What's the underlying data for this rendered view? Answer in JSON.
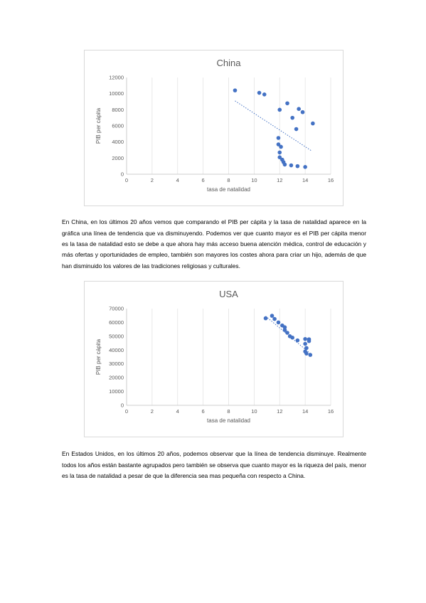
{
  "chart_data": [
    {
      "type": "scatter",
      "title": "China",
      "xlabel": "tasa de natalidad",
      "ylabel": "PIB per cápita",
      "xlim": [
        0,
        16
      ],
      "ylim": [
        0,
        12000
      ],
      "xticks": [
        0,
        2,
        4,
        6,
        8,
        10,
        12,
        14,
        16
      ],
      "yticks": [
        0,
        2000,
        4000,
        6000,
        8000,
        10000,
        12000
      ],
      "grid": "vertical",
      "trendline": {
        "style": "dotted",
        "x1": 8.5,
        "y1": 9100,
        "x2": 14.5,
        "y2": 2900
      },
      "color": "#4472c4",
      "points": [
        [
          8.5,
          10400
        ],
        [
          10.4,
          10100
        ],
        [
          10.8,
          9900
        ],
        [
          12.6,
          8800
        ],
        [
          12.0,
          8000
        ],
        [
          13.5,
          8100
        ],
        [
          13.8,
          7700
        ],
        [
          13.0,
          7000
        ],
        [
          14.6,
          6300
        ],
        [
          13.3,
          5600
        ],
        [
          11.9,
          4500
        ],
        [
          11.9,
          3700
        ],
        [
          12.1,
          3400
        ],
        [
          12.0,
          2700
        ],
        [
          12.0,
          2100
        ],
        [
          12.2,
          1800
        ],
        [
          12.3,
          1500
        ],
        [
          12.4,
          1200
        ],
        [
          12.9,
          1100
        ],
        [
          13.4,
          1000
        ],
        [
          14.0,
          900
        ]
      ]
    },
    {
      "type": "scatter",
      "title": "USA",
      "xlabel": "tasa de natalidad",
      "ylabel": "PIB per cápita",
      "xlim": [
        0,
        16
      ],
      "ylim": [
        0,
        70000
      ],
      "xticks": [
        0,
        2,
        4,
        6,
        8,
        10,
        12,
        14,
        16
      ],
      "yticks": [
        0,
        10000,
        20000,
        30000,
        40000,
        50000,
        60000,
        70000
      ],
      "grid": "vertical",
      "trendline": {
        "style": "dotted",
        "x1": 10.9,
        "y1": 64500,
        "x2": 14.4,
        "y2": 37500
      },
      "color": "#4472c4",
      "points": [
        [
          10.9,
          63000
        ],
        [
          11.4,
          64800
        ],
        [
          11.6,
          62500
        ],
        [
          11.9,
          60000
        ],
        [
          12.2,
          57800
        ],
        [
          12.4,
          56500
        ],
        [
          12.4,
          54500
        ],
        [
          12.6,
          52500
        ],
        [
          12.8,
          50000
        ],
        [
          13.0,
          49000
        ],
        [
          13.4,
          47000
        ],
        [
          14.0,
          48000
        ],
        [
          14.3,
          47800
        ],
        [
          14.0,
          44500
        ],
        [
          14.3,
          46500
        ],
        [
          14.1,
          41500
        ],
        [
          14.0,
          39000
        ],
        [
          14.1,
          37500
        ],
        [
          14.4,
          36500
        ]
      ]
    }
  ],
  "paragraphs": {
    "china": "En China, en los últimos 20 años vemos que comparando el PIB per cápita y la tasa de natalidad aparece en la gráfica una línea de tendencia que va disminuyendo. Podemos ver que cuanto mayor es el PIB per cápita menor es la tasa de natalidad esto se debe a que ahora hay más acceso buena atención médica, control de educación y más ofertas y oportunidades de empleo, también son mayores los costes ahora para criar un hijo, además de que han disminuido los valores de las tradiciones religiosas y culturales.",
    "usa": "En Estados Unidos, en los últimos 20 años, podemos observar que la línea de tendencia disminuye. Realmente todos los años están bastante agrupados pero también se observa que cuanto mayor es la riqueza del país, menor es la tasa de natalidad a pesar de que la diferencia sea mas pequeña con respecto a China."
  }
}
